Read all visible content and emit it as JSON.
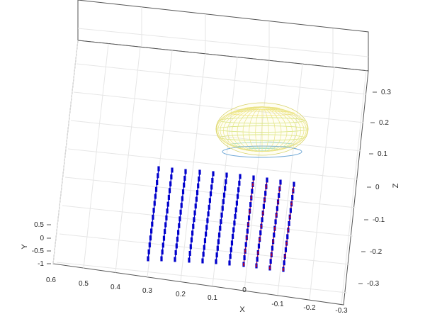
{
  "chart_data": {
    "type": "scatter3d",
    "title": "",
    "xlabel": "X",
    "ylabel": "Y",
    "zlabel": "Z",
    "xlim": [
      -0.3,
      0.6
    ],
    "ylim": [
      -1,
      0.5
    ],
    "zlim": [
      -0.35,
      0.35
    ],
    "x_ticks": [
      "0.6",
      "0.5",
      "0.4",
      "0.3",
      "0.2",
      "0.1",
      "0",
      "-0.1",
      "-0.2",
      "-0.3"
    ],
    "y_ticks": [
      "0.5",
      "0",
      "-0.5",
      "-1"
    ],
    "z_ticks": [
      "0.3",
      "0.2",
      "0.1",
      "0",
      "-0.1",
      "-0.2",
      "-0.3"
    ],
    "grid": true,
    "series": [
      {
        "type": "markers",
        "color_blue": "#0000cc",
        "color_red": "#aa0033",
        "columns_x": [
          0.3,
          0.26,
          0.22,
          0.18,
          0.14,
          0.1,
          0.06,
          0.02,
          -0.02,
          -0.06,
          -0.1
        ]
      },
      {
        "type": "mesh-ellipsoid",
        "colormap": "parula-light",
        "center_x": 0.0,
        "center_z": 0.18
      }
    ]
  }
}
